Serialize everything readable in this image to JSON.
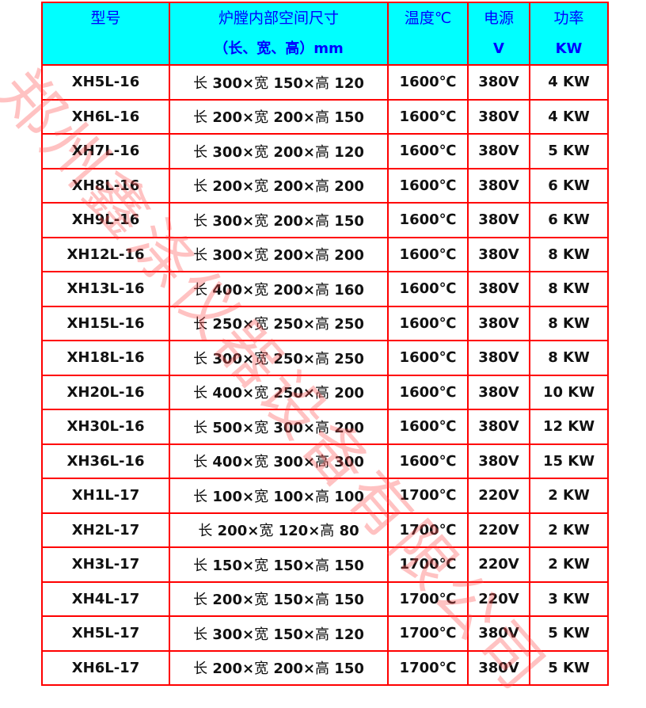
{
  "header": {
    "model": "型号",
    "size": "炉膛内部空间尺寸",
    "size_sub": "（长、宽、高）mm",
    "temp": "温度℃",
    "power_supply": "电源",
    "power_supply_unit": "V",
    "power": "功率",
    "power_unit": "KW"
  },
  "rows": [
    {
      "model": "XH5L-16",
      "l": "300",
      "w": "150",
      "h": "120",
      "temp": "1600℃",
      "volt": "380V",
      "power": "4 KW"
    },
    {
      "model": "XH6L-16",
      "l": "200",
      "w": "200",
      "h": "150",
      "temp": "1600℃",
      "volt": "380V",
      "power": "4 KW"
    },
    {
      "model": "XH7L-16",
      "l": "300",
      "w": "200",
      "h": "120",
      "temp": "1600℃",
      "volt": "380V",
      "power": "5 KW"
    },
    {
      "model": "XH8L-16",
      "l": "200",
      "w": "200",
      "h": "200",
      "temp": "1600℃",
      "volt": "380V",
      "power": "6 KW"
    },
    {
      "model": "XH9L-16",
      "l": "300",
      "w": "200",
      "h": "150",
      "temp": "1600℃",
      "volt": "380V",
      "power": "6 KW"
    },
    {
      "model": "XH12L-16",
      "l": "300",
      "w": "200",
      "h": "200",
      "temp": "1600℃",
      "volt": "380V",
      "power": "8 KW"
    },
    {
      "model": "XH13L-16",
      "l": "400",
      "w": "200",
      "h": "160",
      "temp": "1600℃",
      "volt": "380V",
      "power": "8 KW"
    },
    {
      "model": "XH15L-16",
      "l": "250",
      "w": "250",
      "h": "250",
      "temp": "1600℃",
      "volt": "380V",
      "power": "8 KW"
    },
    {
      "model": "XH18L-16",
      "l": "300",
      "w": "250",
      "h": "250",
      "temp": "1600℃",
      "volt": "380V",
      "power": "8 KW"
    },
    {
      "model": "XH20L-16",
      "l": "400",
      "w": "250",
      "h": "200",
      "temp": "1600℃",
      "volt": "380V",
      "power": "10 KW"
    },
    {
      "model": "XH30L-16",
      "l": "500",
      "w": "300",
      "h": "200",
      "temp": "1600℃",
      "volt": "380V",
      "power": "12 KW"
    },
    {
      "model": "XH36L-16",
      "l": "400",
      "w": "300",
      "h": "300",
      "temp": "1600℃",
      "volt": "380V",
      "power": "15 KW"
    },
    {
      "model": "XH1L-17",
      "l": "100",
      "w": "100",
      "h": "100",
      "temp": "1700℃",
      "volt": "220V",
      "power": "2 KW"
    },
    {
      "model": "XH2L-17",
      "l": "200",
      "w": "120",
      "h": "80",
      "temp": "1700℃",
      "volt": "220V",
      "power": "2 KW"
    },
    {
      "model": "XH3L-17",
      "l": "150",
      "w": "150",
      "h": "150",
      "temp": "1700℃",
      "volt": "220V",
      "power": "2 KW"
    },
    {
      "model": "XH4L-17",
      "l": "200",
      "w": "150",
      "h": "150",
      "temp": "1700℃",
      "volt": "220V",
      "power": "3 KW"
    },
    {
      "model": "XH5L-17",
      "l": "300",
      "w": "150",
      "h": "120",
      "temp": "1700℃",
      "volt": "380V",
      "power": "5 KW"
    },
    {
      "model": "XH6L-17",
      "l": "200",
      "w": "200",
      "h": "150",
      "temp": "1700℃",
      "volt": "380V",
      "power": "5 KW"
    }
  ],
  "labels": {
    "length": "长",
    "width": "宽",
    "height": "高",
    "times": "×"
  },
  "watermark": "郑州鑫涤仪器设备有限公司",
  "colors": {
    "border": "#ff0000",
    "header_bg": "#00ffff",
    "header_text": "#0000ff"
  }
}
